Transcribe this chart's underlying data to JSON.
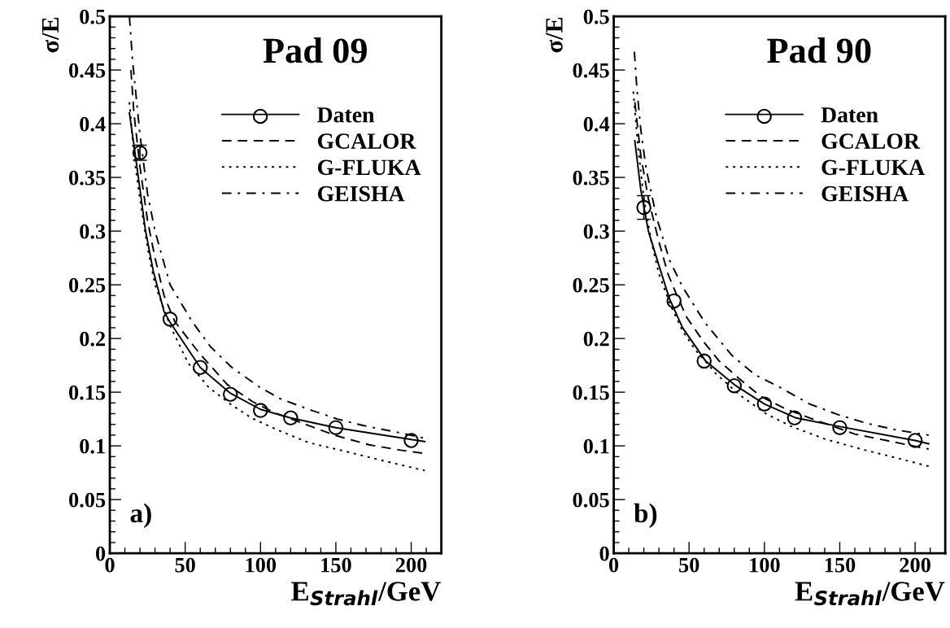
{
  "chart_data": [
    {
      "type": "line",
      "title": "Pad 09",
      "xlabel": "E$_{Strahl}$/GeV",
      "ylabel": "σ/E",
      "annotations": [
        "a)"
      ],
      "xlim": [
        0,
        220
      ],
      "ylim": [
        0,
        0.5
      ],
      "xticks": [
        0,
        50,
        100,
        150,
        200
      ],
      "yticks": [
        0,
        0.05,
        0.1,
        0.15,
        0.2,
        0.25,
        0.3,
        0.35,
        0.4,
        0.45,
        0.5
      ],
      "grid": false,
      "legend": "top right",
      "series": [
        {
          "name": "Daten",
          "type": "scatter",
          "marker": "circle",
          "color": "#000000",
          "x": [
            20,
            40,
            60,
            80,
            100,
            120,
            150,
            200
          ],
          "values": [
            0.373,
            0.218,
            0.173,
            0.148,
            0.133,
            0.126,
            0.117,
            0.105
          ],
          "errors": [
            0.007,
            null,
            null,
            null,
            null,
            null,
            null,
            null
          ]
        },
        {
          "name": "Daten",
          "type": "line",
          "line_style": "solid",
          "color": "#000000",
          "x": [
            13,
            16.6,
            20,
            23.6,
            28.8,
            36,
            40,
            60,
            80,
            100,
            120,
            150,
            200,
            209
          ],
          "values": [
            0.41,
            0.374,
            0.339,
            0.301,
            0.263,
            0.225,
            0.215,
            0.173,
            0.149,
            0.134,
            0.126,
            0.117,
            0.106,
            0.104
          ]
        },
        {
          "name": "GCALOR",
          "type": "line",
          "line_style": "dashed",
          "color": "#000000",
          "x": [
            14,
            16,
            20,
            25,
            30,
            36,
            43,
            59,
            78,
            95,
            109,
            132,
            149,
            172,
            193,
            209
          ],
          "values": [
            0.45,
            0.41,
            0.36,
            0.31,
            0.275,
            0.24,
            0.216,
            0.187,
            0.157,
            0.141,
            0.131,
            0.119,
            0.11,
            0.101,
            0.096,
            0.093
          ]
        },
        {
          "name": "G-FLUKA",
          "type": "line",
          "line_style": "dotted",
          "color": "#000000",
          "x": [
            13,
            16,
            20,
            25,
            30,
            40,
            52,
            66,
            80,
            94,
            111,
            132,
            156,
            182,
            209
          ],
          "values": [
            0.42,
            0.37,
            0.33,
            0.285,
            0.25,
            0.212,
            0.177,
            0.154,
            0.139,
            0.126,
            0.115,
            0.103,
            0.095,
            0.086,
            0.077
          ]
        },
        {
          "name": "GEISHA",
          "type": "line",
          "line_style": "dashdot",
          "color": "#000000",
          "x": [
            13,
            15,
            20,
            25,
            30,
            40,
            55,
            67,
            81,
            99,
            113,
            132,
            151,
            168,
            193,
            209
          ],
          "values": [
            0.5,
            0.46,
            0.39,
            0.335,
            0.3,
            0.25,
            0.215,
            0.192,
            0.173,
            0.155,
            0.144,
            0.134,
            0.125,
            0.119,
            0.112,
            0.107
          ]
        }
      ]
    },
    {
      "type": "line",
      "title": "Pad 90",
      "xlabel": "E$_{Strahl}$/GeV",
      "ylabel": "σ/E",
      "annotations": [
        "b)"
      ],
      "xlim": [
        0,
        220
      ],
      "ylim": [
        0,
        0.5
      ],
      "xticks": [
        0,
        50,
        100,
        150,
        200
      ],
      "yticks": [
        0,
        0.05,
        0.1,
        0.15,
        0.2,
        0.25,
        0.3,
        0.35,
        0.4,
        0.45,
        0.5
      ],
      "grid": false,
      "legend": "top right",
      "series": [
        {
          "name": "Daten",
          "type": "scatter",
          "marker": "circle",
          "color": "#000000",
          "x": [
            20,
            40,
            60,
            80,
            100,
            120,
            150,
            200
          ],
          "values": [
            0.322,
            0.235,
            0.179,
            0.156,
            0.139,
            0.126,
            0.117,
            0.105
          ],
          "errors": [
            0.011,
            null,
            null,
            null,
            null,
            null,
            null,
            null
          ]
        },
        {
          "name": "Daten",
          "type": "line",
          "line_style": "solid",
          "color": "#000000",
          "x": [
            14,
            18,
            23,
            30,
            37,
            45.7,
            61,
            81,
            100,
            121,
            150,
            200,
            209
          ],
          "values": [
            0.384,
            0.338,
            0.3,
            0.268,
            0.237,
            0.21,
            0.179,
            0.156,
            0.139,
            0.126,
            0.118,
            0.105,
            0.102
          ]
        },
        {
          "name": "GCALOR",
          "type": "line",
          "line_style": "dashed",
          "color": "#000000",
          "x": [
            14,
            18,
            23,
            30,
            36,
            42,
            48.3,
            59.6,
            70,
            83.8,
            97.6,
            114.8,
            132,
            160,
            181,
            209
          ],
          "values": [
            0.42,
            0.37,
            0.33,
            0.29,
            0.26,
            0.24,
            0.22,
            0.197,
            0.179,
            0.162,
            0.146,
            0.134,
            0.125,
            0.111,
            0.105,
            0.097
          ]
        },
        {
          "name": "G-FLUKA",
          "type": "line",
          "line_style": "dotted",
          "color": "#000000",
          "x": [
            13,
            16,
            20,
            25,
            30,
            38,
            45.7,
            54.4,
            68,
            84,
            101,
            118,
            141,
            167,
            187,
            209
          ],
          "values": [
            0.43,
            0.38,
            0.33,
            0.29,
            0.26,
            0.23,
            0.207,
            0.189,
            0.167,
            0.147,
            0.13,
            0.118,
            0.106,
            0.096,
            0.089,
            0.081
          ]
        },
        {
          "name": "GEISHA",
          "type": "line",
          "line_style": "dashdot",
          "color": "#000000",
          "x": [
            13.7,
            15.4,
            18,
            21.5,
            28.4,
            37,
            45.7,
            60.4,
            78.6,
            94,
            111,
            130,
            149,
            168,
            187,
            209
          ],
          "values": [
            0.467,
            0.432,
            0.394,
            0.358,
            0.313,
            0.273,
            0.248,
            0.215,
            0.184,
            0.166,
            0.154,
            0.139,
            0.129,
            0.121,
            0.115,
            0.11
          ]
        }
      ]
    }
  ]
}
